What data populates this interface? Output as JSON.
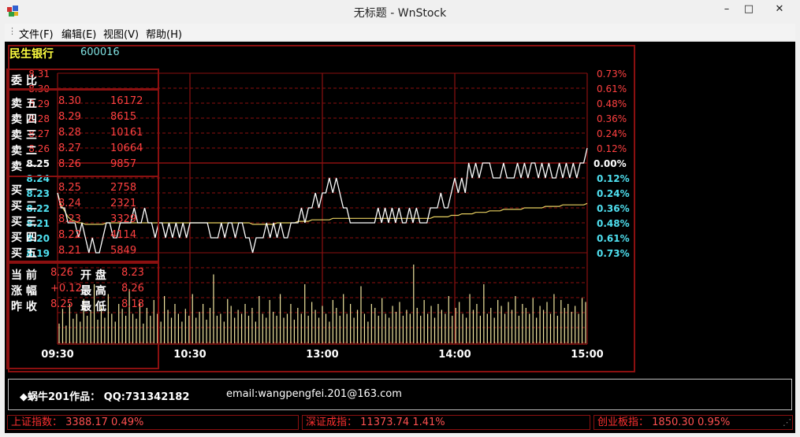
{
  "window": {
    "title": "无标题 - WnStock",
    "minimize_glyph": "–",
    "maximize_glyph": "□",
    "close_glyph": "✕"
  },
  "menu": {
    "grip": "⋮",
    "items": [
      {
        "label": "文件(F)"
      },
      {
        "label": "编辑(E)"
      },
      {
        "label": "视图(V)"
      },
      {
        "label": "帮助(H)"
      }
    ]
  },
  "stock": {
    "name": "民生银行",
    "code": "600016"
  },
  "weibi": {
    "label": "委  比"
  },
  "asks": [
    {
      "label": "卖 五",
      "price": "8.30",
      "volume": "16172"
    },
    {
      "label": "卖 四",
      "price": "8.29",
      "volume": "8615"
    },
    {
      "label": "卖 三",
      "price": "8.28",
      "volume": "10161"
    },
    {
      "label": "卖 二",
      "price": "8.27",
      "volume": "10664"
    },
    {
      "label": "卖 一",
      "price": "8.26",
      "volume": "9857"
    }
  ],
  "bids": [
    {
      "label": "买 一",
      "price": "8.25",
      "volume": "2758"
    },
    {
      "label": "买 二",
      "price": "8.24",
      "volume": "2321"
    },
    {
      "label": "买 三",
      "price": "8.23",
      "volume": "3329"
    },
    {
      "label": "买 四",
      "price": "8.22",
      "volume": "4114"
    },
    {
      "label": "买 五",
      "price": "8.21",
      "volume": "5849"
    }
  ],
  "summary": [
    {
      "l1": "当 前",
      "v1": "8.26",
      "l2": "开 盘",
      "v2": "8.23"
    },
    {
      "l1": "涨 幅",
      "v1": "+0.12",
      "l2": "最 高",
      "v2": "8.26"
    },
    {
      "l1": "昨 收",
      "v1": "8.25",
      "l2": "最 低",
      "v2": "8.18"
    }
  ],
  "info": {
    "author": "◆蜗牛201作品：  QQ:731342182",
    "email": "email:wangpengfei.201@163.com"
  },
  "indices": [
    {
      "name": "上证指数：",
      "value": "3388.17  0.49%"
    },
    {
      "name": "深证成指：",
      "value": "11373.74  1.41%"
    },
    {
      "name": "创业板指：",
      "value": "1850.30  0.95%"
    }
  ],
  "colors": {
    "grid": "#8b1010",
    "price_line": "#ffffff",
    "avg_line": "#e8d060",
    "volume": "#f0e6a0",
    "up": "#ff4040",
    "down": "#4fe0f0",
    "neutral": "#ffffff",
    "label_yellow": "#ffff40"
  },
  "chart_data": {
    "type": "line",
    "x_ticks": [
      "09:30",
      "10:30",
      "13:00",
      "14:00",
      "15:00"
    ],
    "price_ticks_up": [
      "8.31",
      "8.30",
      "8.29",
      "8.28",
      "8.27",
      "8.26"
    ],
    "price_tick_mid": "8.25",
    "price_ticks_down": [
      "8.24",
      "8.23",
      "8.22",
      "8.21",
      "8.20",
      "8.19"
    ],
    "pct_ticks_up": [
      "0.73%",
      "0.61%",
      "0.48%",
      "0.36%",
      "0.24%",
      "0.12%"
    ],
    "pct_tick_mid": "0.00%",
    "pct_ticks_down": [
      "0.12%",
      "0.24%",
      "0.36%",
      "0.48%",
      "0.61%",
      "0.73%"
    ],
    "ylim": [
      8.19,
      8.31
    ],
    "prev_close": 8.25,
    "series": [
      {
        "values": [
          8.23,
          8.22,
          8.22,
          8.21,
          8.21,
          8.21,
          8.2,
          8.21,
          8.2,
          8.19,
          8.2,
          8.19,
          8.19,
          8.2,
          8.21,
          8.21,
          8.2,
          8.2,
          8.21,
          8.21,
          8.21,
          8.21,
          8.22,
          8.21,
          8.21,
          8.22,
          8.21,
          8.21,
          8.2,
          8.21,
          8.21,
          8.2,
          8.21,
          8.2,
          8.21,
          8.2,
          8.21,
          8.2,
          8.21,
          8.21,
          8.21,
          8.21,
          8.21,
          8.21,
          8.2,
          8.2,
          8.2,
          8.21,
          8.2,
          8.21,
          8.21,
          8.2,
          8.21,
          8.21,
          8.2,
          8.2,
          8.19,
          8.2,
          8.2,
          8.2,
          8.21,
          8.2,
          8.21,
          8.2,
          8.21,
          8.2,
          8.2,
          8.21,
          8.21,
          8.21,
          8.22,
          8.21,
          8.22,
          8.22,
          8.23,
          8.22,
          8.23,
          8.23,
          8.24,
          8.23,
          8.24,
          8.23,
          8.22,
          8.22,
          8.21,
          8.21,
          8.21,
          8.21,
          8.21,
          8.21,
          8.21,
          8.21,
          8.22,
          8.21,
          8.22,
          8.21,
          8.22,
          8.21,
          8.22,
          8.21,
          8.21,
          8.22,
          8.21,
          8.22,
          8.21,
          8.21,
          8.21,
          8.22,
          8.22,
          8.22,
          8.23,
          8.22,
          8.22,
          8.23,
          8.24,
          8.23,
          8.24,
          8.23,
          8.25,
          8.24,
          8.25,
          8.24,
          8.25,
          8.25,
          8.25,
          8.24,
          8.24,
          8.24,
          8.25,
          8.24,
          8.24,
          8.24,
          8.25,
          8.24,
          8.25,
          8.24,
          8.25,
          8.25,
          8.24,
          8.25,
          8.24,
          8.25,
          8.24,
          8.24,
          8.25,
          8.24,
          8.25,
          8.24,
          8.25,
          8.24,
          8.25,
          8.25,
          8.26
        ]
      },
      {
        "values": [
          8.23,
          8.222,
          8.218,
          8.214,
          8.212,
          8.211,
          8.21,
          8.21,
          8.209,
          8.209,
          8.209,
          8.209,
          8.209,
          8.209,
          8.21,
          8.21,
          8.21,
          8.21,
          8.21,
          8.21,
          8.21,
          8.21,
          8.21,
          8.21,
          8.21,
          8.21,
          8.21,
          8.21,
          8.21,
          8.21,
          8.21,
          8.21,
          8.21,
          8.21,
          8.21,
          8.21,
          8.21,
          8.21,
          8.21,
          8.21,
          8.21,
          8.21,
          8.21,
          8.21,
          8.21,
          8.21,
          8.21,
          8.21,
          8.21,
          8.21,
          8.21,
          8.21,
          8.21,
          8.21,
          8.21,
          8.21,
          8.209,
          8.209,
          8.209,
          8.209,
          8.209,
          8.209,
          8.209,
          8.21,
          8.21,
          8.21,
          8.21,
          8.21,
          8.21,
          8.211,
          8.211,
          8.211,
          8.211,
          8.212,
          8.212,
          8.212,
          8.212,
          8.212,
          8.212,
          8.213,
          8.213,
          8.213,
          8.213,
          8.213,
          8.213,
          8.213,
          8.213,
          8.213,
          8.213,
          8.213,
          8.213,
          8.213,
          8.213,
          8.213,
          8.213,
          8.213,
          8.213,
          8.213,
          8.213,
          8.213,
          8.213,
          8.213,
          8.213,
          8.213,
          8.213,
          8.213,
          8.213,
          8.213,
          8.214,
          8.214,
          8.214,
          8.214,
          8.214,
          8.215,
          8.215,
          8.215,
          8.216,
          8.216,
          8.216,
          8.216,
          8.217,
          8.217,
          8.217,
          8.217,
          8.218,
          8.218,
          8.218,
          8.218,
          8.219,
          8.219,
          8.219,
          8.219,
          8.219,
          8.219,
          8.22,
          8.22,
          8.22,
          8.22,
          8.22,
          8.22,
          8.221,
          8.221,
          8.221,
          8.221,
          8.221,
          8.222,
          8.222,
          8.222,
          8.222,
          8.222,
          8.222,
          8.222,
          8.223
        ]
      }
    ],
    "volume": [
      20,
      35,
      18,
      40,
      25,
      30,
      22,
      45,
      28,
      33,
      60,
      24,
      38,
      26,
      50,
      30,
      22,
      40,
      35,
      28,
      55,
      30,
      25,
      42,
      20,
      36,
      28,
      44,
      30,
      22,
      48,
      34,
      26,
      40,
      30,
      22,
      35,
      28,
      50,
      26,
      32,
      40,
      24,
      36,
      70,
      28,
      30,
      22,
      45,
      38,
      26,
      34,
      30,
      40,
      28,
      36,
      22,
      48,
      30,
      26,
      44,
      32,
      28,
      50,
      26,
      30,
      40,
      24,
      36,
      30,
      60,
      28,
      42,
      34,
      26,
      38,
      30,
      22,
      44,
      36,
      28,
      50,
      30,
      40,
      26,
      34,
      58,
      30,
      22,
      40,
      36,
      28,
      46,
      30,
      26,
      38,
      32,
      42,
      28,
      34,
      30,
      80,
      36,
      28,
      44,
      30,
      38,
      26,
      40,
      34,
      30,
      48,
      28,
      36,
      42,
      30,
      26,
      50,
      34,
      40,
      28,
      60,
      30,
      36,
      26,
      44,
      38,
      30,
      42,
      34,
      48,
      28,
      40,
      36,
      30,
      46,
      26,
      38,
      34,
      42,
      30,
      50,
      28,
      44,
      36,
      40,
      32,
      38,
      30,
      46,
      42
    ]
  }
}
